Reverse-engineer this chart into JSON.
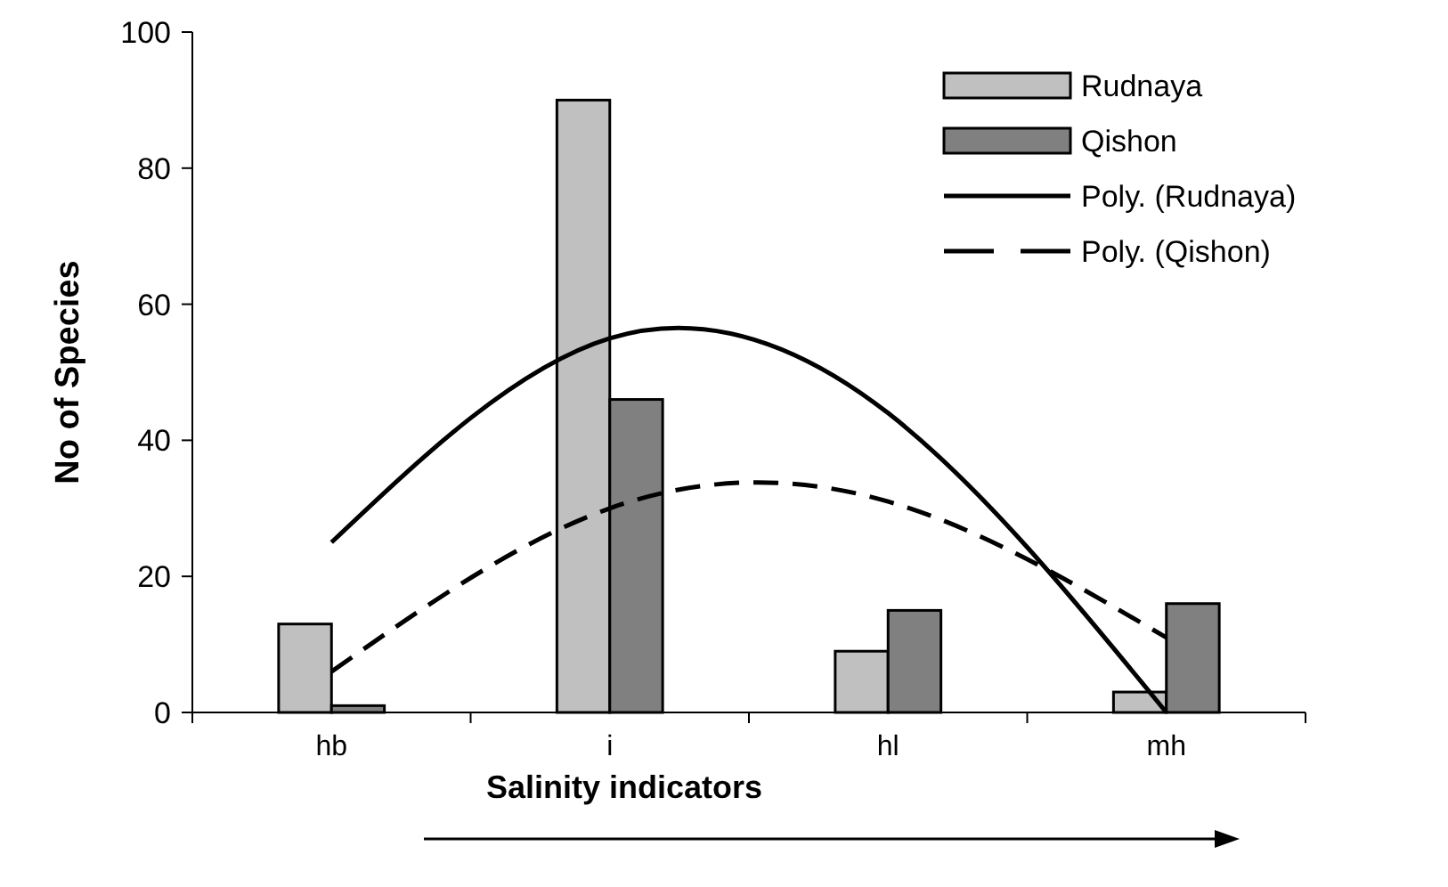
{
  "chart_data": {
    "type": "bar",
    "xlabel": "Salinity indicators",
    "ylabel": "No of Species",
    "categories": [
      "hb",
      "i",
      "hl",
      "mh"
    ],
    "ylim": [
      0,
      100
    ],
    "yticks": [
      0,
      20,
      40,
      60,
      80,
      100
    ],
    "grid": false,
    "legend": "top right",
    "series": [
      {
        "name": "Rudnaya",
        "color": "#c0c0c0",
        "values": [
          13,
          90,
          9,
          3
        ]
      },
      {
        "name": "Qishon",
        "color": "#808080",
        "values": [
          1,
          46,
          15,
          16
        ]
      },
      {
        "name": "Poly. (Rudnaya)",
        "type": "line",
        "color": "#000000",
        "line_style": "solid",
        "values": [
          25,
          55,
          44,
          0
        ]
      },
      {
        "name": "Poly. (Qishon)",
        "type": "line",
        "color": "#000000",
        "line_style": "dashed",
        "values": [
          6,
          30,
          31,
          11
        ]
      }
    ]
  }
}
